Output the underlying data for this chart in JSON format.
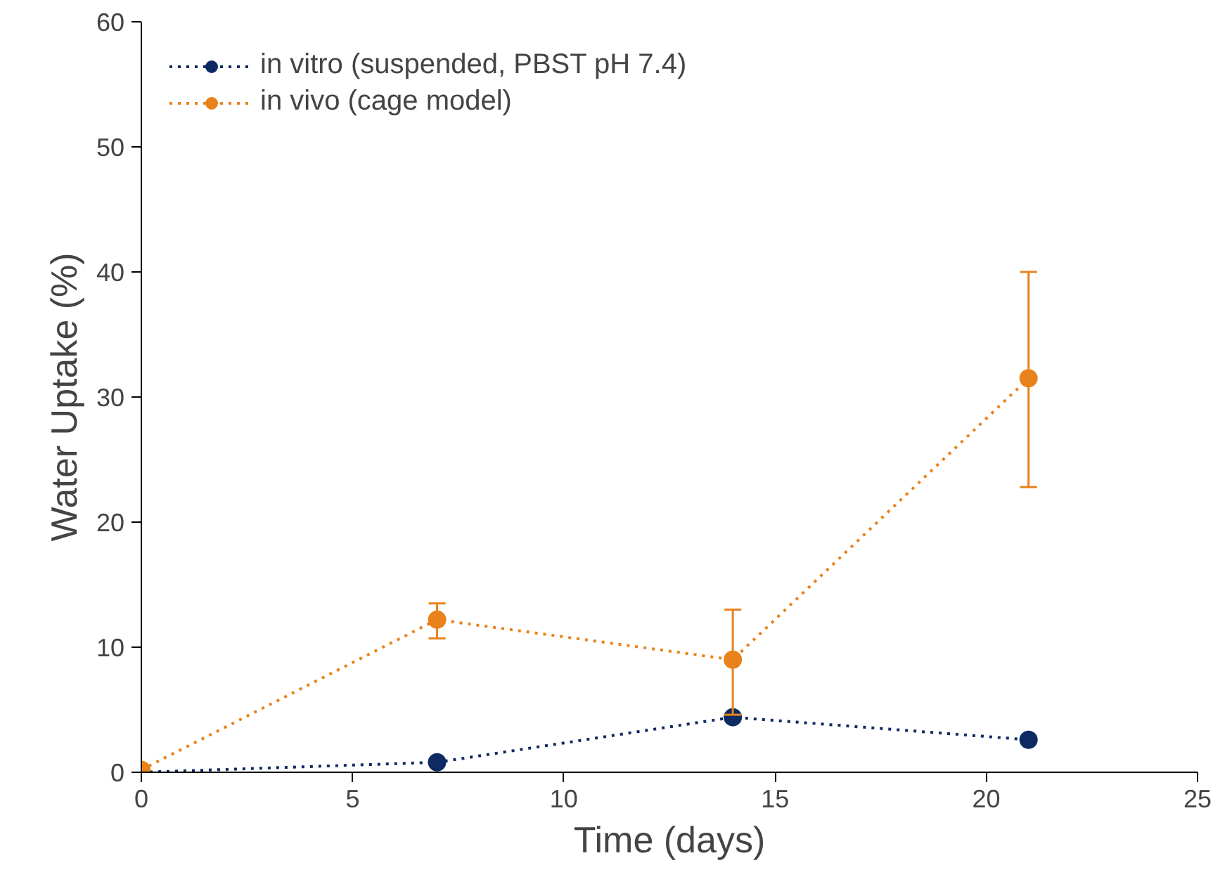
{
  "chart_data": {
    "type": "line",
    "xlabel": "Time (days)",
    "ylabel": "Water Uptake (%)",
    "xlim": [
      0,
      25
    ],
    "xticks": [
      0,
      5,
      10,
      15,
      20,
      25
    ],
    "ylim": [
      0,
      60
    ],
    "yticks": [
      0,
      10,
      20,
      30,
      40,
      50,
      60
    ],
    "grid": false,
    "legend": "top left",
    "marker": "circle",
    "line_style": "dotted",
    "x": [
      0,
      7,
      14,
      21
    ],
    "series": [
      {
        "name": "in vitro (suspended, PBST pH 7.4)",
        "color": "#0d2a63",
        "values": [
          0,
          0.8,
          4.4,
          2.6
        ]
      },
      {
        "name": "in vivo (cage model)",
        "color": "#e8821a",
        "values": [
          0.2,
          12.2,
          9.0,
          31.5
        ],
        "errors": [
          null,
          [
            10.7,
            13.5
          ],
          [
            4.6,
            13.0
          ],
          [
            22.8,
            40.0
          ]
        ]
      }
    ]
  }
}
